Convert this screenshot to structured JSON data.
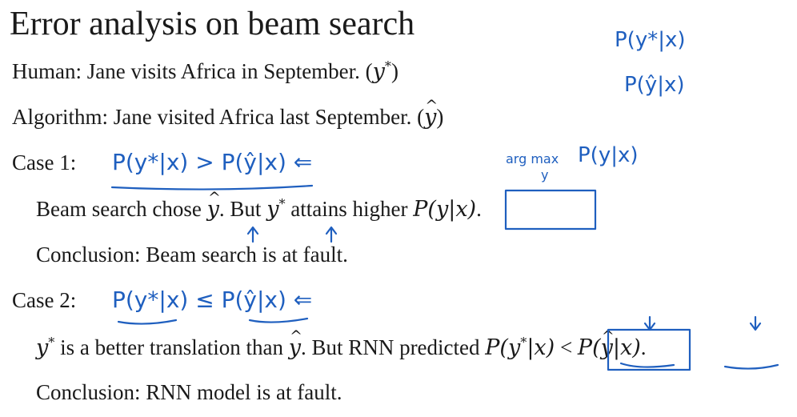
{
  "slide": {
    "title": "Error analysis on beam search",
    "human_prefix": "Human: Jane visits Africa in September. (",
    "human_suffix": ")",
    "algorithm_prefix": "Algorithm: Jane visited Africa last September. (",
    "algorithm_suffix": ")",
    "case1_label": "Case 1:",
    "case1_line1_a": "Beam search chose ",
    "case1_line1_b": ". But ",
    "case1_line1_c": " attains higher ",
    "case1_line1_end": ".",
    "case1_line2": "Conclusion: Beam search is at fault.",
    "case2_label": "Case 2:",
    "case2_line1_a": " is a better translation than ",
    "case2_line1_b": ". But RNN predicted ",
    "case2_line1_lt": " < ",
    "case2_line1_end": ".",
    "case2_line2": "Conclusion: RNN model is at fault.",
    "math": {
      "y_star": "y",
      "star": "*",
      "y_hat": "y",
      "p_y_given_x": "P(y|x)",
      "p_ystar_open": "P(y",
      "p_ystar_close": "|x)",
      "p_yhat_open": "P(",
      "p_yhat_close": "|x)"
    }
  },
  "annotations": {
    "top_right_1": "P(y*|x)",
    "top_right_2": "P(ŷ|x)",
    "case1_ink": "P(y*|x) > P(ŷ|x) ⇐",
    "argmax_word": "arg max",
    "argmax_sub": "y",
    "argmax_expr": "P(y|x)",
    "case2_ink": "P(y*|x) ≤ P(ŷ|x) ⇐",
    "ink_color": "#1f5fbf"
  }
}
